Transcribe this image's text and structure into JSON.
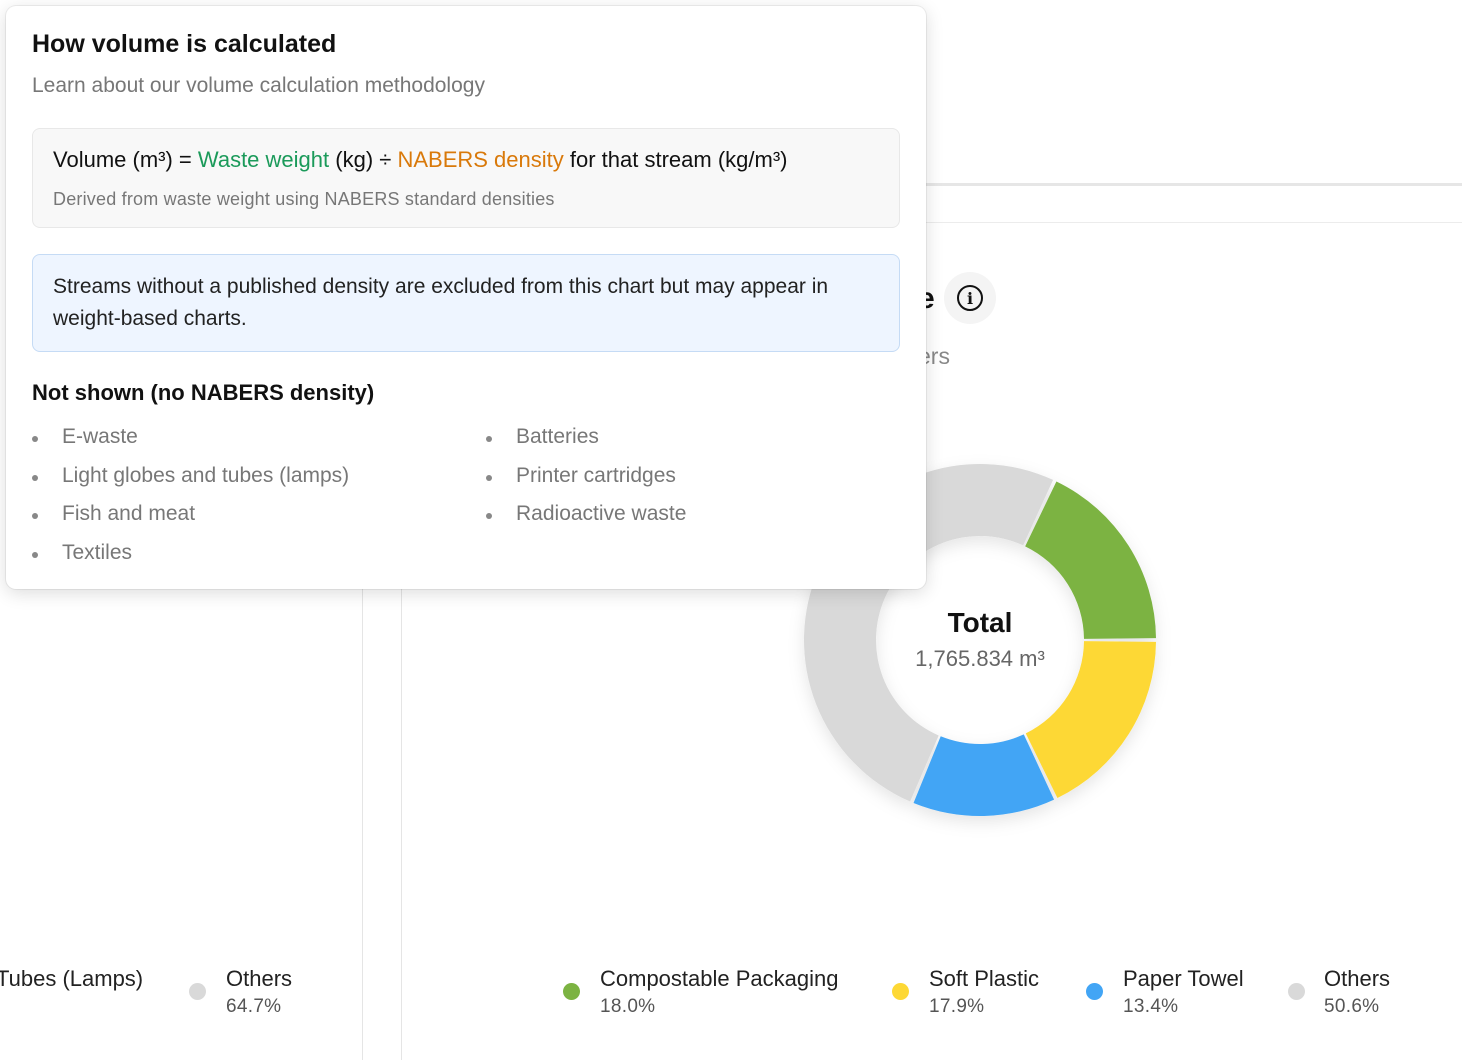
{
  "background": {
    "partial_title": "e",
    "partial_subtitle": "ers",
    "chart_center": {
      "title": "Total",
      "value": "1,765.834 m³"
    },
    "left_legend": [
      {
        "label": "Tubes (Lamps)",
        "pct": ""
      },
      {
        "label": "Others",
        "pct": "64.7%",
        "color": "#d9d9d9"
      }
    ],
    "legend": [
      {
        "label": "Compostable Packaging",
        "pct": "18.0%",
        "color": "#7cb342"
      },
      {
        "label": "Soft Plastic",
        "pct": "17.9%",
        "color": "#fdd835"
      },
      {
        "label": "Paper Towel",
        "pct": "13.4%",
        "color": "#42a5f5"
      },
      {
        "label": "Others",
        "pct": "50.6%",
        "color": "#d9d9d9"
      }
    ]
  },
  "chart_data": {
    "type": "pie",
    "donut": true,
    "categories": [
      "Compostable Packaging",
      "Soft Plastic",
      "Paper Towel",
      "Others"
    ],
    "values": [
      18.0,
      17.9,
      13.4,
      50.6
    ],
    "colors": [
      "#7cb342",
      "#fdd835",
      "#42a5f5",
      "#d9d9d9"
    ],
    "center_label": "Total",
    "center_value": "1,765.834 m³"
  },
  "popover": {
    "title": "How volume is calculated",
    "subtitle": "Learn about our volume calculation methodology",
    "formula": {
      "prefix": "Volume (m³) =",
      "weight": "Waste weight",
      "unit_kg": "(kg) ÷",
      "density": "NABERS density",
      "suffix": "for that stream (kg/m³)",
      "note": "Derived from waste weight using NABERS standard densities"
    },
    "note": "Streams without a published density are excluded from this chart but may appear in weight-based charts.",
    "not_shown_title": "Not shown (no NABERS density)",
    "not_shown_left": [
      "E-waste",
      "Light globes and tubes (lamps)",
      "Fish and meat",
      "Textiles"
    ],
    "not_shown_right": [
      "Batteries",
      "Printer cartridges",
      "Radioactive waste"
    ]
  }
}
